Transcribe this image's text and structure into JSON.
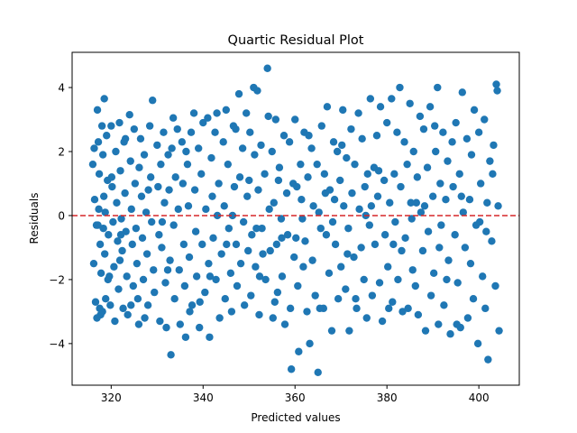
{
  "chart_data": {
    "type": "scatter",
    "title": "Quartic Residual Plot",
    "xlabel": "Predicted values",
    "ylabel": "Residuals",
    "xlim": [
      311.5,
      408.8
    ],
    "ylim": [
      -5.3,
      5.1
    ],
    "xticks": [
      320,
      340,
      360,
      380,
      400
    ],
    "xtick_labels": [
      "320",
      "340",
      "360",
      "380",
      "400"
    ],
    "yticks": [
      -4,
      -2,
      0,
      2,
      4
    ],
    "ytick_labels": [
      "−4",
      "−2",
      "0",
      "2",
      "4"
    ],
    "grid": false,
    "reference_line": {
      "y": 0,
      "style": "dashed",
      "color": "#d62728"
    },
    "marker_color": "#1f77b4",
    "points": [
      [
        316.0,
        1.6
      ],
      [
        316.4,
        0.5
      ],
      [
        316.8,
        -0.3
      ],
      [
        316.2,
        -1.5
      ],
      [
        316.6,
        -2.7
      ],
      [
        316.9,
        -3.2
      ],
      [
        317.0,
        3.3
      ],
      [
        317.2,
        2.3
      ],
      [
        317.4,
        1.3
      ],
      [
        317.3,
        0.2
      ],
      [
        317.6,
        -0.9
      ],
      [
        317.8,
        -1.8
      ],
      [
        317.5,
        -2.9
      ],
      [
        318.0,
        2.8
      ],
      [
        318.2,
        1.9
      ],
      [
        318.4,
        0.6
      ],
      [
        318.3,
        -0.4
      ],
      [
        318.6,
        -1.2
      ],
      [
        318.8,
        -2.6
      ],
      [
        318.1,
        -3.0
      ],
      [
        318.5,
        3.65
      ],
      [
        319.0,
        2.5
      ],
      [
        319.2,
        1.1
      ],
      [
        319.4,
        -0.6
      ],
      [
        319.6,
        -1.9
      ],
      [
        319.8,
        -2.8
      ],
      [
        320.0,
        2.8
      ],
      [
        320.2,
        0.9
      ],
      [
        320.4,
        -0.2
      ],
      [
        320.6,
        -1.6
      ],
      [
        320.8,
        -3.3
      ],
      [
        321.0,
        2.0
      ],
      [
        321.2,
        0.4
      ],
      [
        321.4,
        -0.8
      ],
      [
        321.6,
        -2.3
      ],
      [
        321.8,
        2.9
      ],
      [
        322.0,
        1.4
      ],
      [
        322.2,
        -0.1
      ],
      [
        322.4,
        -1.1
      ],
      [
        322.6,
        -2.9
      ],
      [
        322.8,
        2.3
      ],
      [
        323.0,
        0.7
      ],
      [
        323.2,
        -0.5
      ],
      [
        323.4,
        -1.9
      ],
      [
        323.6,
        -3.1
      ],
      [
        324.0,
        3.15
      ],
      [
        324.2,
        1.7
      ],
      [
        324.4,
        0.2
      ],
      [
        324.6,
        -0.9
      ],
      [
        324.8,
        -2.2
      ],
      [
        325.0,
        2.7
      ],
      [
        325.2,
        1.0
      ],
      [
        325.4,
        -0.4
      ],
      [
        325.6,
        -1.5
      ],
      [
        325.8,
        -2.6
      ],
      [
        326.0,
        -3.4
      ],
      [
        326.4,
        2.4
      ],
      [
        326.6,
        0.6
      ],
      [
        326.8,
        -0.7
      ],
      [
        327.0,
        -2.0
      ],
      [
        327.2,
        1.9
      ],
      [
        327.6,
        0.1
      ],
      [
        327.8,
        -1.2
      ],
      [
        328.0,
        -2.8
      ],
      [
        328.4,
        2.8
      ],
      [
        328.6,
        1.2
      ],
      [
        328.8,
        -0.2
      ],
      [
        329.0,
        3.6
      ],
      [
        329.2,
        -1.7
      ],
      [
        329.4,
        -2.4
      ],
      [
        330.0,
        2.2
      ],
      [
        330.2,
        0.9
      ],
      [
        330.4,
        -0.6
      ],
      [
        330.6,
        -3.3
      ],
      [
        330.8,
        1.6
      ],
      [
        331.0,
        -1.0
      ],
      [
        331.4,
        2.6
      ],
      [
        331.6,
        0.4
      ],
      [
        331.8,
        -2.1
      ],
      [
        332.0,
        -3.5
      ],
      [
        332.4,
        1.9
      ],
      [
        332.6,
        0.8
      ],
      [
        332.8,
        -1.4
      ],
      [
        333.0,
        -4.35
      ],
      [
        333.2,
        2.1
      ],
      [
        333.6,
        -0.3
      ],
      [
        333.8,
        -2.6
      ],
      [
        334.0,
        1.2
      ],
      [
        334.4,
        2.7
      ],
      [
        334.6,
        0.2
      ],
      [
        334.8,
        -1.7
      ],
      [
        335.0,
        -3.4
      ],
      [
        335.4,
        2.3
      ],
      [
        335.6,
        1.0
      ],
      [
        335.8,
        -0.9
      ],
      [
        336.0,
        -2.2
      ],
      [
        336.2,
        -3.8
      ],
      [
        336.6,
        1.6
      ],
      [
        336.8,
        0.3
      ],
      [
        337.0,
        -1.3
      ],
      [
        337.4,
        2.6
      ],
      [
        337.6,
        -2.8
      ],
      [
        338.0,
        3.2
      ],
      [
        338.2,
        0.8
      ],
      [
        338.4,
        -0.5
      ],
      [
        338.6,
        -1.9
      ],
      [
        339.0,
        2.1
      ],
      [
        339.2,
        -3.5
      ],
      [
        339.6,
        1.3
      ],
      [
        339.8,
        -0.9
      ],
      [
        340.0,
        2.9
      ],
      [
        340.4,
        -2.4
      ],
      [
        340.6,
        0.2
      ],
      [
        341.0,
        3.05
      ],
      [
        341.2,
        -1.5
      ],
      [
        341.4,
        -3.8
      ],
      [
        341.8,
        1.8
      ],
      [
        342.0,
        0.6
      ],
      [
        342.2,
        -0.7
      ],
      [
        342.6,
        2.6
      ],
      [
        342.8,
        -2.0
      ],
      [
        343.0,
        3.2
      ],
      [
        343.4,
        1.0
      ],
      [
        343.6,
        -3.2
      ],
      [
        344.0,
        -1.2
      ],
      [
        344.4,
        2.3
      ],
      [
        344.6,
        0.3
      ],
      [
        344.8,
        -2.6
      ],
      [
        345.0,
        3.3
      ],
      [
        345.4,
        1.6
      ],
      [
        345.6,
        -0.4
      ],
      [
        346.0,
        -1.8
      ],
      [
        346.2,
        -3.0
      ],
      [
        346.6,
        2.8
      ],
      [
        346.8,
        0.9
      ],
      [
        347.2,
        -0.9
      ],
      [
        347.4,
        -2.2
      ],
      [
        347.8,
        3.8
      ],
      [
        348.0,
        1.2
      ],
      [
        348.2,
        -1.5
      ],
      [
        348.6,
        2.1
      ],
      [
        348.8,
        -0.2
      ],
      [
        349.0,
        -2.8
      ],
      [
        349.4,
        3.2
      ],
      [
        349.6,
        0.6
      ],
      [
        349.8,
        -1.1
      ],
      [
        350.2,
        2.6
      ],
      [
        350.4,
        -2.5
      ],
      [
        350.6,
        -0.6
      ],
      [
        351.0,
        4.0
      ],
      [
        351.2,
        1.9
      ],
      [
        351.4,
        -1.6
      ],
      [
        351.8,
        3.9
      ],
      [
        352.0,
        0.8
      ],
      [
        352.2,
        -3.1
      ],
      [
        352.6,
        2.2
      ],
      [
        352.8,
        -0.4
      ],
      [
        353.0,
        -1.2
      ],
      [
        353.4,
        1.3
      ],
      [
        353.6,
        -2.0
      ],
      [
        354.0,
        4.6
      ],
      [
        354.2,
        3.1
      ],
      [
        354.4,
        0.2
      ],
      [
        354.6,
        -1.1
      ],
      [
        355.0,
        2.0
      ],
      [
        355.2,
        -3.2
      ],
      [
        355.4,
        0.4
      ],
      [
        355.8,
        3.0
      ],
      [
        356.0,
        -0.9
      ],
      [
        356.2,
        -2.4
      ],
      [
        356.6,
        1.5
      ],
      [
        357.0,
        -0.1
      ],
      [
        357.2,
        -1.9
      ],
      [
        357.6,
        2.5
      ],
      [
        357.8,
        -3.4
      ],
      [
        358.2,
        0.7
      ],
      [
        358.4,
        -0.6
      ],
      [
        358.8,
        2.3
      ],
      [
        359.0,
        -2.9
      ],
      [
        359.2,
        -4.8
      ],
      [
        359.6,
        1.0
      ],
      [
        359.8,
        -1.3
      ],
      [
        360.0,
        3.0
      ],
      [
        360.2,
        -0.7
      ],
      [
        360.6,
        -2.2
      ],
      [
        360.8,
        -4.25
      ],
      [
        361.2,
        1.6
      ],
      [
        361.4,
        0.5
      ],
      [
        361.8,
        -1.6
      ],
      [
        362.0,
        2.6
      ],
      [
        362.2,
        -0.8
      ],
      [
        362.6,
        -3.0
      ],
      [
        362.8,
        1.2
      ],
      [
        363.2,
        -4.0
      ],
      [
        363.6,
        2.1
      ],
      [
        363.8,
        -1.4
      ],
      [
        364.0,
        0.3
      ],
      [
        364.4,
        -2.5
      ],
      [
        364.8,
        1.6
      ],
      [
        365.0,
        -4.9
      ],
      [
        365.2,
        0.1
      ],
      [
        365.6,
        -0.4
      ],
      [
        365.8,
        2.8
      ],
      [
        366.2,
        -2.9
      ],
      [
        366.4,
        1.3
      ],
      [
        366.8,
        -0.6
      ],
      [
        367.0,
        3.4
      ],
      [
        367.4,
        -1.8
      ],
      [
        367.6,
        0.8
      ],
      [
        368.0,
        -3.6
      ],
      [
        368.4,
        2.3
      ],
      [
        368.6,
        0.5
      ],
      [
        368.8,
        -0.9
      ],
      [
        369.2,
        2.0
      ],
      [
        369.4,
        -2.6
      ],
      [
        369.8,
        1.1
      ],
      [
        370.0,
        -1.6
      ],
      [
        370.4,
        3.3
      ],
      [
        370.6,
        0.3
      ],
      [
        371.0,
        -2.3
      ],
      [
        371.2,
        1.8
      ],
      [
        371.6,
        -0.4
      ],
      [
        371.8,
        -3.6
      ],
      [
        372.2,
        2.7
      ],
      [
        372.4,
        0.7
      ],
      [
        372.8,
        -1.3
      ],
      [
        373.0,
        1.6
      ],
      [
        373.4,
        -2.9
      ],
      [
        373.8,
        3.2
      ],
      [
        374.0,
        0.2
      ],
      [
        374.4,
        -1.0
      ],
      [
        374.6,
        2.4
      ],
      [
        375.0,
        -2.0
      ],
      [
        375.2,
        0.9
      ],
      [
        375.6,
        -3.2
      ],
      [
        375.8,
        1.3
      ],
      [
        376.2,
        -0.3
      ],
      [
        376.4,
        3.65
      ],
      [
        376.8,
        -2.5
      ],
      [
        377.2,
        1.5
      ],
      [
        377.4,
        -0.9
      ],
      [
        377.8,
        2.5
      ],
      [
        378.0,
        0.6
      ],
      [
        378.4,
        -2.1
      ],
      [
        378.6,
        3.4
      ],
      [
        379.0,
        -3.3
      ],
      [
        379.4,
        1.1
      ],
      [
        379.6,
        -0.6
      ],
      [
        380.0,
        2.9
      ],
      [
        380.2,
        -1.6
      ],
      [
        380.6,
        0.4
      ],
      [
        381.0,
        3.65
      ],
      [
        381.2,
        -2.7
      ],
      [
        381.6,
        1.3
      ],
      [
        381.8,
        -0.2
      ],
      [
        382.2,
        2.6
      ],
      [
        382.4,
        -2.0
      ],
      [
        382.8,
        4.0
      ],
      [
        383.0,
        0.9
      ],
      [
        383.4,
        -3.0
      ],
      [
        383.8,
        2.3
      ],
      [
        384.0,
        -0.7
      ],
      [
        384.4,
        1.6
      ],
      [
        384.6,
        -2.9
      ],
      [
        385.0,
        3.5
      ],
      [
        385.2,
        0.4
      ],
      [
        385.6,
        -1.7
      ],
      [
        385.8,
        2.0
      ],
      [
        386.2,
        -2.2
      ],
      [
        386.6,
        1.2
      ],
      [
        386.8,
        -3.1
      ],
      [
        387.2,
        3.1
      ],
      [
        387.4,
        0.1
      ],
      [
        387.8,
        -1.1
      ],
      [
        388.0,
        2.7
      ],
      [
        388.4,
        -3.6
      ],
      [
        388.8,
        1.5
      ],
      [
        389.0,
        -0.5
      ],
      [
        389.4,
        3.4
      ],
      [
        389.6,
        -2.5
      ],
      [
        390.0,
        0.6
      ],
      [
        390.2,
        -1.8
      ],
      [
        390.6,
        2.0
      ],
      [
        391.0,
        4.0
      ],
      [
        391.2,
        -3.4
      ],
      [
        391.6,
        1.0
      ],
      [
        391.8,
        -0.3
      ],
      [
        392.2,
        2.6
      ],
      [
        392.4,
        -2.8
      ],
      [
        392.8,
        0.5
      ],
      [
        393.2,
        1.7
      ],
      [
        393.4,
        -1.4
      ],
      [
        393.8,
        -3.7
      ],
      [
        394.2,
        2.3
      ],
      [
        394.4,
        0.9
      ],
      [
        394.8,
        -0.6
      ],
      [
        395.0,
        2.9
      ],
      [
        395.4,
        -2.1
      ],
      [
        395.8,
        1.3
      ],
      [
        396.0,
        -3.5
      ],
      [
        396.4,
        3.85
      ],
      [
        396.6,
        0.1
      ],
      [
        397.0,
        -1.0
      ],
      [
        397.4,
        2.4
      ],
      [
        397.6,
        -3.2
      ],
      [
        398.0,
        0.5
      ],
      [
        398.4,
        1.9
      ],
      [
        398.8,
        -2.6
      ],
      [
        399.0,
        3.3
      ],
      [
        399.4,
        -0.3
      ],
      [
        399.8,
        -4.0
      ],
      [
        400.0,
        2.6
      ],
      [
        400.4,
        1.0
      ],
      [
        400.8,
        -1.9
      ],
      [
        401.2,
        3.0
      ],
      [
        401.4,
        -2.9
      ],
      [
        401.8,
        0.4
      ],
      [
        402.0,
        -4.5
      ],
      [
        402.4,
        1.7
      ],
      [
        402.8,
        -0.8
      ],
      [
        403.2,
        2.2
      ],
      [
        403.6,
        -2.2
      ],
      [
        403.8,
        4.1
      ],
      [
        404.0,
        3.9
      ],
      [
        404.2,
        0.3
      ],
      [
        404.4,
        -3.6
      ],
      [
        317.1,
        -0.3
      ],
      [
        318.7,
        0.1
      ],
      [
        321.9,
        -1.4
      ],
      [
        326.1,
        1.5
      ],
      [
        331.1,
        -0.2
      ],
      [
        336.3,
        2.0
      ],
      [
        341.5,
        -1.9
      ],
      [
        346.4,
        0.0
      ],
      [
        351.6,
        -0.4
      ],
      [
        356.4,
        1.1
      ],
      [
        361.6,
        -0.1
      ],
      [
        366.6,
        0.7
      ],
      [
        371.4,
        -1.2
      ],
      [
        376.6,
        0.3
      ],
      [
        381.4,
        -0.9
      ],
      [
        386.4,
        0.4
      ],
      [
        391.4,
        -1.0
      ],
      [
        396.2,
        0.6
      ],
      [
        401.6,
        -0.5
      ],
      [
        319.3,
        -2.0
      ],
      [
        323.1,
        2.4
      ],
      [
        327.3,
        -3.2
      ],
      [
        332.3,
        -1.7
      ],
      [
        337.1,
        -3.0
      ],
      [
        343.1,
        0.0
      ],
      [
        347.1,
        2.7
      ],
      [
        352.3,
        -1.9
      ],
      [
        357.1,
        -0.7
      ],
      [
        363.0,
        2.5
      ],
      [
        368.2,
        -0.2
      ],
      [
        373.2,
        -2.6
      ],
      [
        378.2,
        1.4
      ],
      [
        383.2,
        -1.1
      ],
      [
        388.2,
        0.3
      ],
      [
        393.0,
        -2.0
      ],
      [
        398.2,
        -1.5
      ],
      [
        403.0,
        1.3
      ],
      [
        316.3,
        2.1
      ],
      [
        317.7,
        -3.1
      ],
      [
        320.1,
        1.2
      ],
      [
        322.1,
        -0.6
      ],
      [
        324.3,
        -2.8
      ],
      [
        328.1,
        0.8
      ],
      [
        333.5,
        3.05
      ],
      [
        339.3,
        -2.7
      ],
      [
        345.1,
        -0.9
      ],
      [
        350.0,
        1.1
      ],
      [
        355.6,
        -2.7
      ],
      [
        360.4,
        0.9
      ],
      [
        365.4,
        -2.9
      ],
      [
        370.2,
        2.2
      ],
      [
        375.4,
        0.0
      ],
      [
        380.4,
        -2.9
      ],
      [
        385.4,
        -0.1
      ],
      [
        390.4,
        2.8
      ],
      [
        395.2,
        -3.4
      ],
      [
        400.2,
        -0.2
      ]
    ]
  }
}
